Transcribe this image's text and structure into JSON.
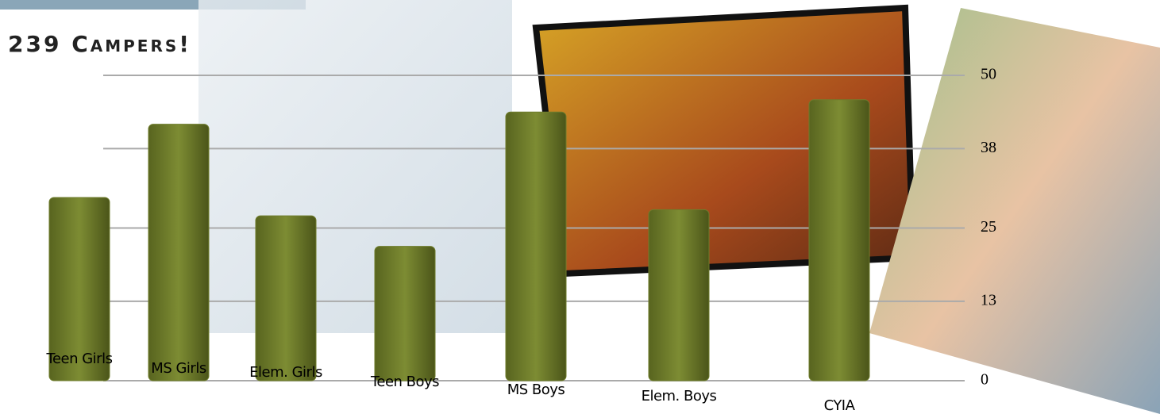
{
  "chart_data": {
    "type": "bar",
    "title": "239 Campers!",
    "categories": [
      "Teen Girls",
      "MS Girls",
      "Elem. Girls",
      "Teen Boys",
      "MS Boys",
      "Elem. Boys",
      "CYIA"
    ],
    "values": [
      30,
      42,
      27,
      22,
      44,
      28,
      46
    ],
    "color": "#6f7d2c",
    "ylim": [
      0,
      50
    ],
    "yticks": [
      0,
      13,
      25,
      38,
      50
    ],
    "grid": true
  }
}
